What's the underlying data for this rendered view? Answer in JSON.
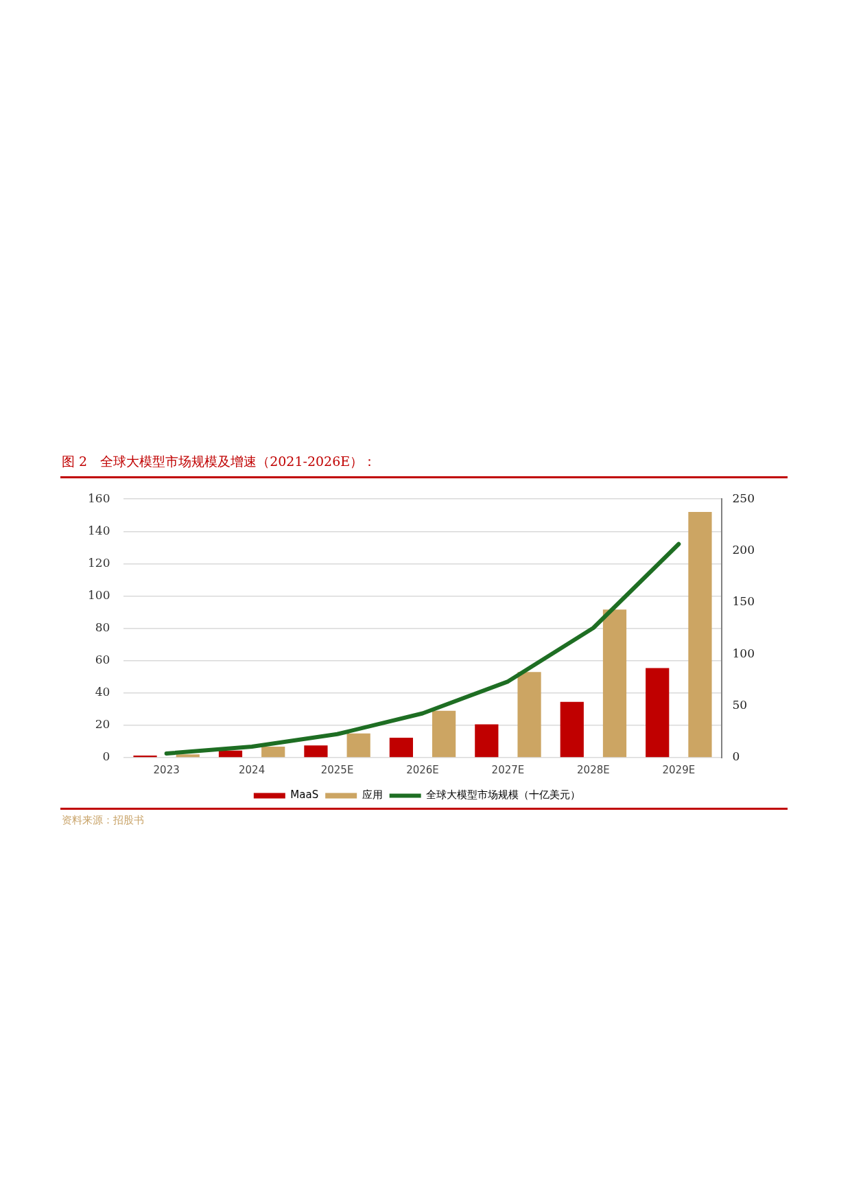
{
  "chart_data": {
    "type": "bar",
    "title": "图 2　全球大模型市场规模及增速（2021-2026E）：",
    "categories": [
      "2023",
      "2024",
      "2025E",
      "2026E",
      "2027E",
      "2028E",
      "2029E"
    ],
    "series": [
      {
        "name": "MaaS",
        "color": "#c00000",
        "values": [
          1.3,
          4.3,
          7.5,
          12.3,
          20.6,
          34.5,
          55.4
        ]
      },
      {
        "name": "应用",
        "color": "#cca563",
        "values": [
          2,
          6.8,
          15,
          29,
          53,
          91.6,
          152
        ]
      },
      {
        "name": "全球大模型市场规模（十亿美元）",
        "type": "line",
        "axis": "y2",
        "color": "#1e6e23",
        "values": [
          4,
          10.6,
          22.7,
          42.8,
          73.6,
          125.4,
          206.5
        ]
      }
    ],
    "ylim": [
      0,
      160
    ],
    "yticks": [
      0,
      20,
      40,
      60,
      80,
      100,
      120,
      140,
      160
    ],
    "y2lim": [
      0,
      250
    ],
    "y2ticks": [
      0,
      50,
      100,
      150,
      200,
      250
    ],
    "grid": "y",
    "legend": "bottom",
    "marker": "none",
    "annotations": [
      "资料来源：招股书"
    ]
  }
}
